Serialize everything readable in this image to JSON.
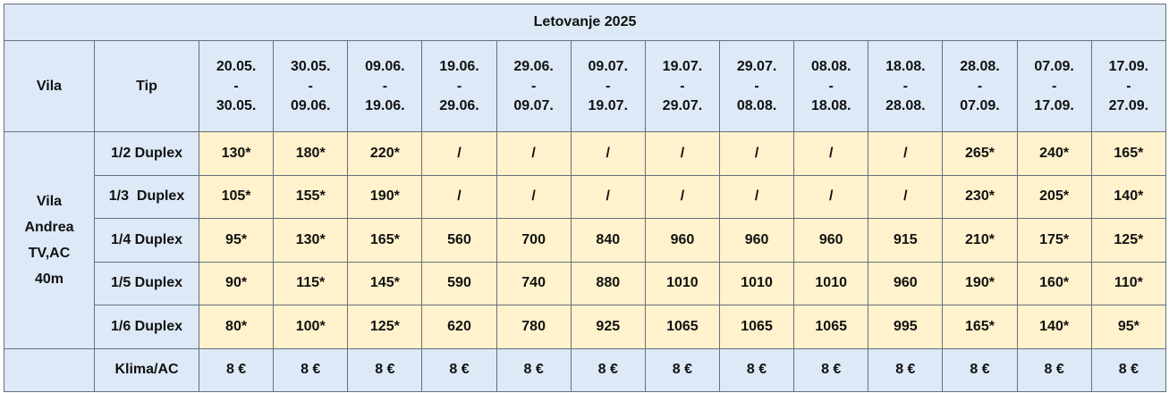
{
  "table": {
    "title": "Letovanje 2025",
    "headers": {
      "vila": "Vila",
      "tip": "Tip"
    },
    "dates": [
      {
        "from": "20.05.",
        "sep": "-",
        "to": "30.05."
      },
      {
        "from": "30.05.",
        "sep": "-",
        "to": "09.06."
      },
      {
        "from": "09.06.",
        "sep": "-",
        "to": "19.06."
      },
      {
        "from": "19.06.",
        "sep": "-",
        "to": "29.06."
      },
      {
        "from": "29.06.",
        "sep": "-",
        "to": "09.07."
      },
      {
        "from": "09.07.",
        "sep": "-",
        "to": "19.07."
      },
      {
        "from": "19.07.",
        "sep": "-",
        "to": "29.07."
      },
      {
        "from": "29.07.",
        "sep": "-",
        "to": "08.08."
      },
      {
        "from": "08.08.",
        "sep": "-",
        "to": "18.08."
      },
      {
        "from": "18.08.",
        "sep": "-",
        "to": "28.08."
      },
      {
        "from": "28.08.",
        "sep": "-",
        "to": "07.09."
      },
      {
        "from": "07.09.",
        "sep": "-",
        "to": "17.09."
      },
      {
        "from": "17.09.",
        "sep": "-",
        "to": "27.09."
      }
    ],
    "vila": [
      "Vila",
      "Andrea",
      "TV,AC",
      "40m"
    ],
    "rows": [
      {
        "tip": "1/2 Duplex",
        "values": [
          "130*",
          "180*",
          "220*",
          "/",
          "/",
          "/",
          "/",
          "/",
          "/",
          "/",
          "265*",
          "240*",
          "165*"
        ]
      },
      {
        "tip": "1/3  Duplex",
        "values": [
          "105*",
          "155*",
          "190*",
          "/",
          "/",
          "/",
          "/",
          "/",
          "/",
          "/",
          "230*",
          "205*",
          "140*"
        ]
      },
      {
        "tip": "1/4 Duplex",
        "values": [
          "95*",
          "130*",
          "165*",
          "560",
          "700",
          "840",
          "960",
          "960",
          "960",
          "915",
          "210*",
          "175*",
          "125*"
        ]
      },
      {
        "tip": "1/5 Duplex",
        "values": [
          "90*",
          "115*",
          "145*",
          "590",
          "740",
          "880",
          "1010",
          "1010",
          "1010",
          "960",
          "190*",
          "160*",
          "110*"
        ]
      },
      {
        "tip": "1/6 Duplex",
        "values": [
          "80*",
          "100*",
          "125*",
          "620",
          "780",
          "925",
          "1065",
          "1065",
          "1065",
          "995",
          "165*",
          "140*",
          "95*"
        ]
      },
      {
        "tip": "Klima/AC",
        "values": [
          "8 €",
          "8 €",
          "8 €",
          "8 €",
          "8 €",
          "8 €",
          "8 €",
          "8 €",
          "8 €",
          "8 €",
          "8 €",
          "8 €",
          "8 €"
        ]
      }
    ]
  }
}
